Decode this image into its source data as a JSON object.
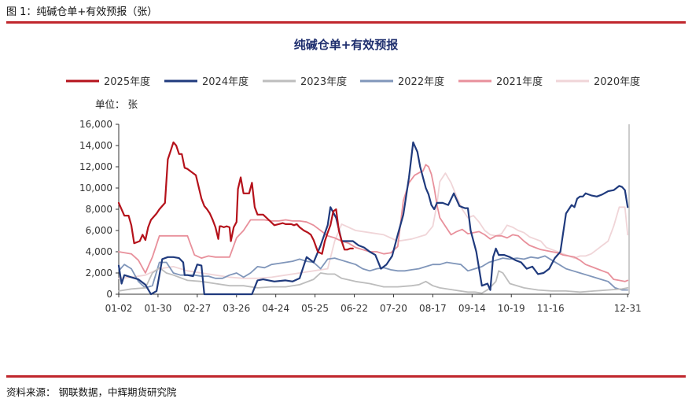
{
  "figure_caption": "图 1：纯碱仓单+有效预报（张）",
  "source": "资料来源：  钢联数据，中辉期货研究院",
  "chart_data": {
    "type": "line",
    "title": "纯碱仓单+有效预报",
    "unit_label": "单位：  张",
    "xlabel": "",
    "ylabel": "",
    "ylim": [
      0,
      16000
    ],
    "yticks": [
      0,
      2000,
      4000,
      6000,
      8000,
      10000,
      12000,
      14000,
      16000
    ],
    "ytick_labels": [
      "0",
      "2,000",
      "4,000",
      "6,000",
      "8,000",
      "10,000",
      "12,000",
      "14,000",
      "16,000"
    ],
    "xlim": [
      1,
      365
    ],
    "xticks": [
      1,
      29,
      57,
      85,
      113,
      141,
      169,
      197,
      225,
      253,
      281,
      309,
      364
    ],
    "xtick_labels": [
      "01-02",
      "01-30",
      "02-27",
      "03-26",
      "04-24",
      "05-25",
      "06-22",
      "07-20",
      "08-17",
      "09-14",
      "10-19",
      "11-16",
      "12-31"
    ],
    "x_unit": "day of year",
    "legend_position": "top",
    "grid": false,
    "series": [
      {
        "name": "2025年度",
        "color": "#b5121b",
        "width": 2.2,
        "x": [
          1,
          5,
          8,
          10,
          12,
          14,
          16,
          18,
          20,
          22,
          24,
          28,
          30,
          34,
          36,
          38,
          40,
          42,
          44,
          46,
          48,
          50,
          53,
          56,
          60,
          62,
          64,
          66,
          68,
          70,
          72,
          73,
          74,
          76,
          78,
          80,
          81,
          83,
          85,
          86,
          88,
          90,
          92,
          94,
          96,
          98,
          100,
          104,
          108,
          112,
          115,
          118,
          120,
          124,
          126,
          128,
          130,
          133,
          136,
          138,
          140,
          143,
          146,
          148,
          150,
          152,
          154,
          156,
          158,
          160,
          162,
          164,
          166,
          168
        ],
        "y": [
          8600,
          7400,
          7400,
          6500,
          4800,
          4900,
          5000,
          5600,
          5100,
          6300,
          7000,
          7600,
          8000,
          8600,
          12700,
          13500,
          14300,
          14000,
          13200,
          13200,
          11900,
          11800,
          11500,
          11200,
          9000,
          8300,
          8000,
          7600,
          7000,
          6300,
          5200,
          6400,
          6400,
          6300,
          6400,
          6300,
          5000,
          6300,
          6800,
          9900,
          11000,
          9500,
          9500,
          9500,
          10500,
          8200,
          7500,
          7500,
          7000,
          6500,
          6600,
          6700,
          6600,
          6600,
          6500,
          6600,
          6300,
          6000,
          5800,
          5600,
          5100,
          4000,
          3800,
          5000,
          5800,
          6500,
          7800,
          8000,
          6000,
          5000,
          4200,
          4200,
          4300,
          4300
        ]
      },
      {
        "name": "2024年度",
        "color": "#1f3a7d",
        "width": 2.2,
        "x": [
          1,
          3,
          5,
          10,
          15,
          20,
          24,
          28,
          32,
          36,
          40,
          44,
          47,
          48,
          50,
          54,
          57,
          60,
          62,
          64,
          70,
          80,
          82,
          86,
          90,
          96,
          100,
          104,
          112,
          120,
          125,
          130,
          135,
          140,
          145,
          150,
          152,
          156,
          160,
          164,
          168,
          172,
          176,
          180,
          184,
          188,
          192,
          196,
          200,
          204,
          208,
          211,
          214,
          216,
          218,
          220,
          222,
          224,
          226,
          228,
          232,
          236,
          240,
          244,
          246,
          248,
          250,
          252,
          256,
          260,
          264,
          266,
          268,
          270,
          272,
          276,
          280,
          284,
          288,
          292,
          296,
          300,
          304,
          308,
          312,
          316,
          320,
          324,
          326,
          328,
          330,
          332,
          334,
          336,
          338,
          342,
          346,
          350,
          354,
          356,
          358,
          360,
          362,
          364
        ],
        "y": [
          2700,
          1000,
          1800,
          1600,
          1400,
          900,
          0,
          300,
          3300,
          3500,
          3500,
          3400,
          3000,
          1800,
          1800,
          1700,
          2800,
          2700,
          0,
          0,
          0,
          0,
          0,
          0,
          0,
          0,
          1300,
          1400,
          1200,
          1300,
          1200,
          1500,
          3500,
          3000,
          4600,
          6500,
          8200,
          7200,
          5000,
          5000,
          5000,
          4600,
          4400,
          4000,
          3700,
          2400,
          2800,
          3600,
          5600,
          7500,
          11000,
          14300,
          13400,
          12000,
          11000,
          10000,
          9400,
          8400,
          8000,
          8600,
          8600,
          8400,
          9500,
          8300,
          8200,
          8100,
          8100,
          6000,
          4000,
          800,
          1000,
          400,
          3500,
          4300,
          3700,
          3700,
          3500,
          3200,
          3000,
          2400,
          2600,
          1900,
          2000,
          2400,
          3400,
          4000,
          7600,
          8400,
          8200,
          9000,
          9200,
          9200,
          9500,
          9400,
          9300,
          9200,
          9400,
          9700,
          9800,
          10000,
          10200,
          10100,
          9800,
          8200
        ]
      },
      {
        "name": "2023年度",
        "color": "#bdbdbd",
        "width": 1.8,
        "x": [
          1,
          10,
          20,
          25,
          30,
          35,
          40,
          50,
          60,
          70,
          80,
          90,
          100,
          110,
          120,
          130,
          140,
          145,
          150,
          155,
          160,
          170,
          180,
          190,
          200,
          210,
          215,
          220,
          225,
          230,
          240,
          250,
          255,
          260,
          265,
          270,
          272,
          275,
          280,
          290,
          300,
          310,
          320,
          330,
          340,
          350,
          360,
          364
        ],
        "y": [
          300,
          500,
          600,
          2000,
          2500,
          2000,
          1800,
          1300,
          1200,
          1000,
          800,
          800,
          600,
          700,
          700,
          900,
          1400,
          2000,
          1900,
          1900,
          1500,
          1200,
          1000,
          700,
          700,
          800,
          900,
          1200,
          800,
          600,
          400,
          200,
          200,
          100,
          500,
          1200,
          2200,
          2000,
          1000,
          600,
          400,
          300,
          300,
          200,
          300,
          400,
          500,
          600
        ]
      },
      {
        "name": "2022年度",
        "color": "#8096ba",
        "width": 1.8,
        "x": [
          1,
          5,
          10,
          15,
          20,
          25,
          30,
          35,
          40,
          45,
          50,
          55,
          60,
          65,
          70,
          75,
          80,
          85,
          90,
          95,
          100,
          105,
          110,
          115,
          120,
          125,
          130,
          135,
          140,
          145,
          150,
          155,
          160,
          165,
          170,
          175,
          180,
          185,
          190,
          195,
          200,
          205,
          210,
          215,
          220,
          225,
          230,
          235,
          240,
          245,
          250,
          255,
          260,
          265,
          270,
          275,
          280,
          285,
          290,
          295,
          300,
          305,
          310,
          315,
          320,
          325,
          330,
          335,
          340,
          345,
          350,
          355,
          360,
          364
        ],
        "y": [
          2200,
          2800,
          2400,
          1200,
          600,
          800,
          3000,
          3000,
          2000,
          1800,
          1800,
          1800,
          1700,
          1700,
          1500,
          1500,
          1800,
          2000,
          1600,
          2000,
          2600,
          2500,
          2800,
          2900,
          3000,
          3100,
          3300,
          3100,
          3000,
          2400,
          3300,
          3400,
          3200,
          3000,
          2800,
          2400,
          2200,
          2400,
          2500,
          2300,
          2200,
          2200,
          2300,
          2400,
          2600,
          2800,
          2800,
          3000,
          2900,
          2800,
          2200,
          2400,
          2600,
          3000,
          3200,
          3400,
          3300,
          3400,
          3300,
          3500,
          3400,
          3600,
          3200,
          2800,
          2400,
          2200,
          2000,
          1800,
          1600,
          1400,
          1200,
          600,
          400,
          400
        ]
      },
      {
        "name": "2021年度",
        "color": "#e8909b",
        "width": 1.8,
        "x": [
          1,
          10,
          15,
          20,
          25,
          30,
          35,
          40,
          45,
          50,
          55,
          60,
          65,
          70,
          75,
          80,
          85,
          90,
          95,
          100,
          105,
          110,
          115,
          120,
          125,
          130,
          135,
          140,
          145,
          150,
          155,
          160,
          165,
          170,
          175,
          180,
          185,
          190,
          195,
          200,
          204,
          208,
          212,
          216,
          218,
          220,
          222,
          224,
          226,
          228,
          230,
          234,
          238,
          242,
          246,
          250,
          254,
          258,
          262,
          266,
          270,
          274,
          278,
          282,
          286,
          290,
          294,
          298,
          302,
          306,
          310,
          314,
          318,
          322,
          326,
          330,
          334,
          338,
          342,
          346,
          350,
          354,
          358,
          362,
          364
        ],
        "y": [
          4000,
          3800,
          3200,
          2000,
          3500,
          5500,
          5500,
          5500,
          5500,
          5500,
          3700,
          3400,
          3600,
          3500,
          3500,
          3500,
          5300,
          6000,
          7000,
          7000,
          7000,
          6900,
          6900,
          7000,
          6900,
          6900,
          6800,
          6500,
          6000,
          5500,
          5300,
          5000,
          4800,
          4400,
          4200,
          4000,
          4000,
          3800,
          3900,
          4500,
          8800,
          10500,
          11200,
          11500,
          11600,
          12200,
          12000,
          11300,
          10000,
          8400,
          7200,
          6400,
          5600,
          5900,
          6100,
          5700,
          5800,
          5900,
          5600,
          5200,
          5500,
          5500,
          5300,
          5600,
          5500,
          5000,
          4600,
          4400,
          4200,
          4100,
          4000,
          3900,
          3700,
          3600,
          3500,
          3200,
          2800,
          2600,
          2400,
          2200,
          2000,
          1400,
          1300,
          1200,
          1300
        ]
      },
      {
        "name": "2020年度",
        "color": "#f0d5d8",
        "width": 1.8,
        "x": [
          1,
          10,
          20,
          30,
          40,
          50,
          60,
          70,
          80,
          90,
          100,
          110,
          120,
          130,
          140,
          150,
          155,
          160,
          170,
          180,
          190,
          200,
          210,
          220,
          225,
          228,
          230,
          234,
          238,
          242,
          246,
          250,
          254,
          258,
          262,
          266,
          270,
          274,
          278,
          282,
          286,
          290,
          294,
          298,
          302,
          306,
          310,
          314,
          318,
          322,
          326,
          330,
          334,
          338,
          342,
          346,
          350,
          354,
          358,
          362,
          364
        ],
        "y": [
          1500,
          1600,
          1800,
          2400,
          2600,
          2200,
          2000,
          1800,
          1600,
          1500,
          1500,
          1600,
          1800,
          2000,
          2200,
          2400,
          5000,
          6600,
          6000,
          5800,
          5600,
          5000,
          5200,
          5600,
          6400,
          8500,
          10600,
          11400,
          10500,
          9200,
          8000,
          7200,
          7400,
          6800,
          6000,
          5600,
          5500,
          5700,
          6500,
          6300,
          6000,
          5800,
          5400,
          5200,
          5000,
          4400,
          4200,
          4000,
          3800,
          3600,
          3400,
          3600,
          3600,
          3800,
          4200,
          4600,
          5000,
          6400,
          8200,
          8200,
          5600
        ]
      }
    ]
  }
}
